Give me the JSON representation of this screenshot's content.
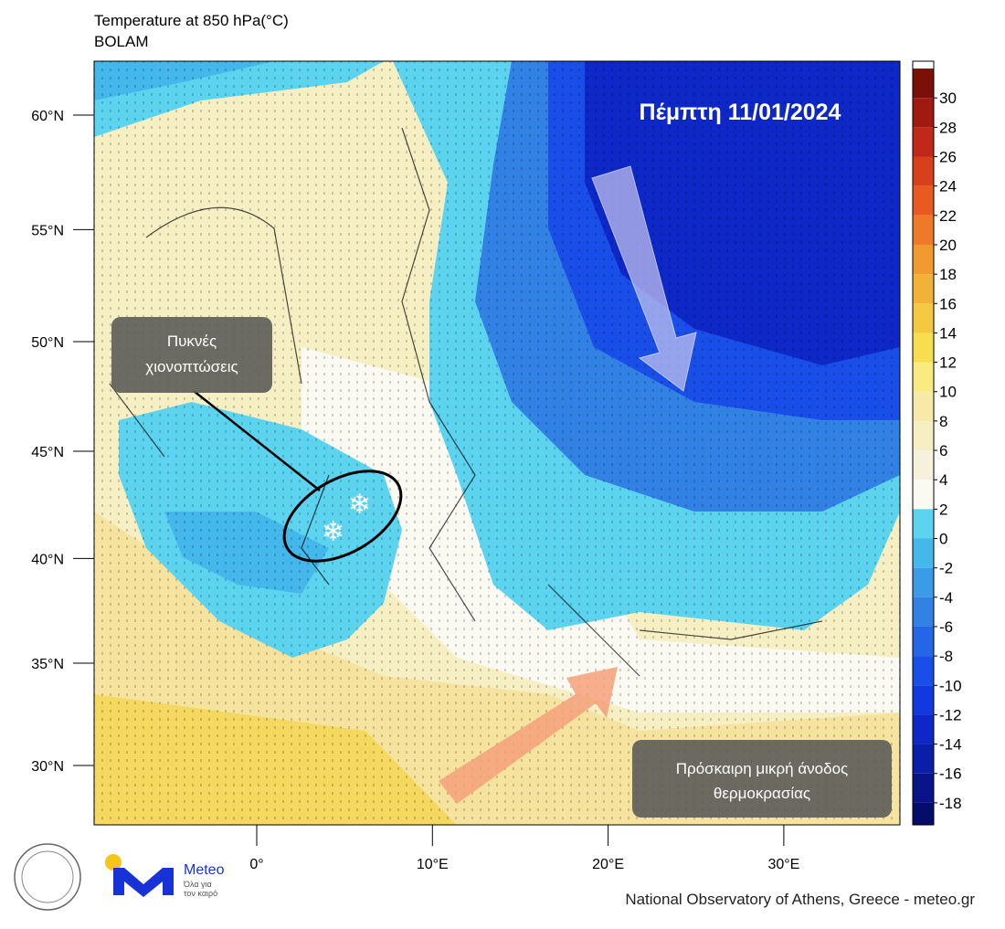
{
  "header": {
    "title": "Temperature at 850 hPa(°C)",
    "model": "BOLAM"
  },
  "map": {
    "date": "Πέμπτη 11/01/2024",
    "lat_ticks": [
      {
        "value": 60,
        "label": "60°N"
      },
      {
        "value": 55,
        "label": "55°N"
      },
      {
        "value": 50,
        "label": "50°N"
      },
      {
        "value": 45,
        "label": "45°N"
      },
      {
        "value": 40,
        "label": "40°N"
      },
      {
        "value": 35,
        "label": "35°N"
      },
      {
        "value": 30,
        "label": "30°N"
      }
    ],
    "lon_ticks": [
      {
        "value": 0,
        "label": "0°"
      },
      {
        "value": 10,
        "label": "10°E"
      },
      {
        "value": 20,
        "label": "20°E"
      },
      {
        "value": 30,
        "label": "30°E"
      }
    ],
    "annotations": [
      {
        "lines": [
          "Πυκνές",
          "χιονοπτώσεις"
        ]
      },
      {
        "lines": [
          "Πρόσκαιρη μικρή άνοδος",
          "θερμοκρασίας"
        ]
      }
    ]
  },
  "colorbar": {
    "lim": [
      -19.5,
      32.5
    ],
    "ticks": [
      30,
      28,
      26,
      24,
      22,
      20,
      18,
      16,
      14,
      12,
      10,
      8,
      6,
      4,
      2,
      0,
      -2,
      -4,
      -6,
      -8,
      -10,
      -12,
      -14,
      -16,
      -18
    ],
    "bin_starts": [
      30,
      28,
      26,
      24,
      22,
      20,
      18,
      16,
      14,
      12,
      10,
      8,
      6,
      4,
      2,
      0,
      -2,
      -4,
      -6,
      -8,
      -10,
      -12,
      -14,
      -16,
      -18,
      -20
    ],
    "bin_width": 2,
    "colors": [
      "#7a1008",
      "#a01a10",
      "#c0281a",
      "#d8401c",
      "#e85a20",
      "#ee7a28",
      "#f19a30",
      "#f2b238",
      "#f5c842",
      "#f7de4e",
      "#f8ec80",
      "#f6eaa8",
      "#f6efc4",
      "#f5f1dc",
      "#fbfaf2",
      "#5cd4f0",
      "#44b8ea",
      "#3a9ce6",
      "#3282e6",
      "#2466e6",
      "#1a4ee8",
      "#1238e0",
      "#0e28c8",
      "#0a1ea8",
      "#081488",
      "#060c6a"
    ]
  },
  "footer": {
    "credit": "National Observatory of Athens, Greece - meteo.gr",
    "brand": "Meteo",
    "slogan": [
      "Όλα για",
      "τον καιρό"
    ]
  }
}
